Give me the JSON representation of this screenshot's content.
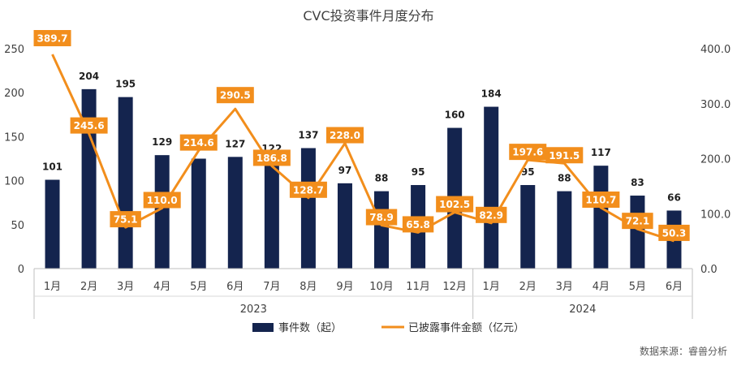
{
  "chart_data": {
    "type": "bar",
    "title": "CVC投资事件月度分布",
    "categories": [
      "1月",
      "2月",
      "3月",
      "4月",
      "5月",
      "6月",
      "7月",
      "8月",
      "9月",
      "10月",
      "11月",
      "12月",
      "1月",
      "2月",
      "3月",
      "4月",
      "5月",
      "6月"
    ],
    "groups": [
      {
        "label": "2023",
        "count": 12
      },
      {
        "label": "2024",
        "count": 6
      }
    ],
    "series": [
      {
        "name": "事件数（起）",
        "type": "bar",
        "axis": "left",
        "color": "#14244e",
        "values": [
          101,
          204,
          195,
          129,
          125,
          127,
          122,
          137,
          97,
          88,
          95,
          160,
          184,
          95,
          88,
          117,
          83,
          66
        ]
      },
      {
        "name": "已披露事件金额（亿元）",
        "type": "line",
        "axis": "right",
        "color": "#f28e1c",
        "values": [
          389.7,
          245.6,
          75.1,
          110.0,
          214.6,
          290.5,
          186.8,
          128.7,
          228.0,
          78.9,
          65.8,
          102.5,
          82.9,
          197.6,
          191.5,
          110.7,
          72.1,
          50.3
        ]
      }
    ],
    "y_left": {
      "min": 0,
      "max": 250,
      "ticks": [
        "0",
        "50",
        "100",
        "150",
        "200",
        "250"
      ]
    },
    "y_right": {
      "min": 0,
      "max": 400,
      "ticks": [
        "0.0",
        "100.0",
        "200.0",
        "300.0",
        "400.0"
      ]
    },
    "line_labels": [
      "389.7",
      "245.6",
      "75.1",
      "110.0",
      "214.6",
      "290.5",
      "186.8",
      "128.7",
      "228.0",
      "78.9",
      "65.8",
      "102.5",
      "82.9",
      "197.6",
      "191.5",
      "110.7",
      "72.1",
      "50.3"
    ],
    "legend_position": "bottom",
    "grid": false,
    "source": "数据来源：睿兽分析"
  }
}
